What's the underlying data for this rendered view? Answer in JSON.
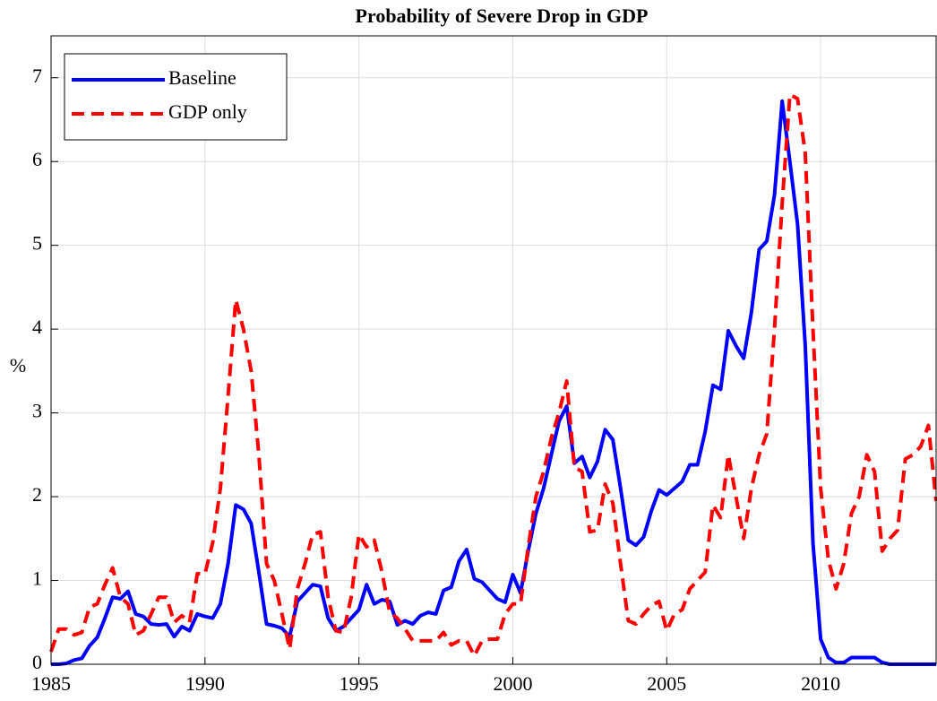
{
  "chart_data": {
    "type": "line",
    "title": "Probability of Severe Drop in GDP",
    "y_label": "%",
    "x": [
      1985,
      1985.25,
      1985.5,
      1985.75,
      1986,
      1986.25,
      1986.5,
      1986.75,
      1987,
      1987.25,
      1987.5,
      1987.75,
      1988,
      1988.25,
      1988.5,
      1988.75,
      1989,
      1989.25,
      1989.5,
      1989.75,
      1990,
      1990.25,
      1990.5,
      1990.75,
      1991,
      1991.25,
      1991.5,
      1991.75,
      1992,
      1992.25,
      1992.5,
      1992.75,
      1993,
      1993.25,
      1993.5,
      1993.75,
      1994,
      1994.25,
      1994.5,
      1994.75,
      1995,
      1995.25,
      1995.5,
      1995.75,
      1996,
      1996.25,
      1996.5,
      1996.75,
      1997,
      1997.25,
      1997.5,
      1997.75,
      1998,
      1998.25,
      1998.5,
      1998.75,
      1999,
      1999.25,
      1999.5,
      1999.75,
      2000,
      2000.25,
      2000.5,
      2000.75,
      2001,
      2001.25,
      2001.5,
      2001.75,
      2002,
      2002.25,
      2002.5,
      2002.75,
      2003,
      2003.25,
      2003.5,
      2003.75,
      2004,
      2004.25,
      2004.5,
      2004.75,
      2005,
      2005.25,
      2005.5,
      2005.75,
      2006,
      2006.25,
      2006.5,
      2006.75,
      2007,
      2007.25,
      2007.5,
      2007.75,
      2008,
      2008.25,
      2008.5,
      2008.75,
      2009,
      2009.25,
      2009.5,
      2009.75,
      2010,
      2010.25,
      2010.5,
      2010.75,
      2011,
      2011.25,
      2011.5,
      2011.75,
      2012,
      2012.25,
      2012.5,
      2012.75,
      2013,
      2013.25,
      2013.5,
      2013.75
    ],
    "series": [
      {
        "name": "Baseline",
        "color": "#0000ff",
        "dash": "solid",
        "values": [
          0,
          0,
          0.01,
          0.05,
          0.07,
          0.22,
          0.32,
          0.55,
          0.8,
          0.78,
          0.87,
          0.6,
          0.57,
          0.48,
          0.47,
          0.48,
          0.33,
          0.45,
          0.4,
          0.6,
          0.57,
          0.55,
          0.72,
          1.2,
          1.9,
          1.85,
          1.68,
          1.1,
          0.48,
          0.46,
          0.43,
          0.33,
          0.75,
          0.85,
          0.95,
          0.93,
          0.55,
          0.4,
          0.45,
          0.55,
          0.65,
          0.95,
          0.72,
          0.77,
          0.75,
          0.47,
          0.52,
          0.48,
          0.58,
          0.62,
          0.6,
          0.88,
          0.92,
          1.23,
          1.37,
          1.02,
          0.98,
          0.88,
          0.78,
          0.74,
          1.07,
          0.85,
          1.35,
          1.8,
          2.1,
          2.5,
          2.9,
          3.08,
          2.4,
          2.48,
          2.23,
          2.42,
          2.8,
          2.68,
          2.1,
          1.48,
          1.42,
          1.52,
          1.83,
          2.08,
          2.02,
          2.1,
          2.18,
          2.38,
          2.38,
          2.78,
          3.33,
          3.28,
          3.98,
          3.8,
          3.65,
          4.2,
          4.95,
          5.05,
          5.6,
          6.72,
          6.0,
          5.25,
          3.8,
          1.45,
          0.3,
          0.08,
          0.02,
          0.02,
          0.08,
          0.08,
          0.08,
          0.08,
          0.02,
          0,
          0,
          0,
          0,
          0,
          0,
          0
        ]
      },
      {
        "name": "GDP only",
        "color": "#ff0000",
        "dash": "dashed",
        "values": [
          0.15,
          0.42,
          0.42,
          0.35,
          0.38,
          0.68,
          0.72,
          0.95,
          1.15,
          0.8,
          0.72,
          0.35,
          0.4,
          0.6,
          0.8,
          0.8,
          0.5,
          0.58,
          0.5,
          1.08,
          1.08,
          1.45,
          2.1,
          3.2,
          4.35,
          4.0,
          3.5,
          2.5,
          1.2,
          1.0,
          0.6,
          0.18,
          0.9,
          1.2,
          1.55,
          1.58,
          0.8,
          0.4,
          0.38,
          0.8,
          1.55,
          1.4,
          1.48,
          1.1,
          0.62,
          0.55,
          0.42,
          0.28,
          0.28,
          0.28,
          0.28,
          0.38,
          0.23,
          0.28,
          0.28,
          0.1,
          0.28,
          0.3,
          0.3,
          0.6,
          0.72,
          0.72,
          1.4,
          2.0,
          2.3,
          2.7,
          3.0,
          3.38,
          2.35,
          2.3,
          1.58,
          1.6,
          2.15,
          1.92,
          1.2,
          0.52,
          0.48,
          0.6,
          0.7,
          0.75,
          0.4,
          0.6,
          0.65,
          0.9,
          1.0,
          1.1,
          1.9,
          1.75,
          2.5,
          2.0,
          1.5,
          2.1,
          2.5,
          2.75,
          4.0,
          5.5,
          6.8,
          6.75,
          6.1,
          4.0,
          2.1,
          1.25,
          0.9,
          1.2,
          1.8,
          2.0,
          2.5,
          2.3,
          1.35,
          1.5,
          1.6,
          2.45,
          2.5,
          2.6,
          2.85,
          1.95
        ]
      }
    ],
    "xlim": [
      1985,
      2013.75
    ],
    "xticks": [
      1985,
      1990,
      1995,
      2000,
      2005,
      2010
    ],
    "ylim": [
      0,
      7.5
    ],
    "yticks": [
      0,
      1,
      2,
      3,
      4,
      5,
      6,
      7
    ],
    "grid": true,
    "legend": "upper-left"
  }
}
